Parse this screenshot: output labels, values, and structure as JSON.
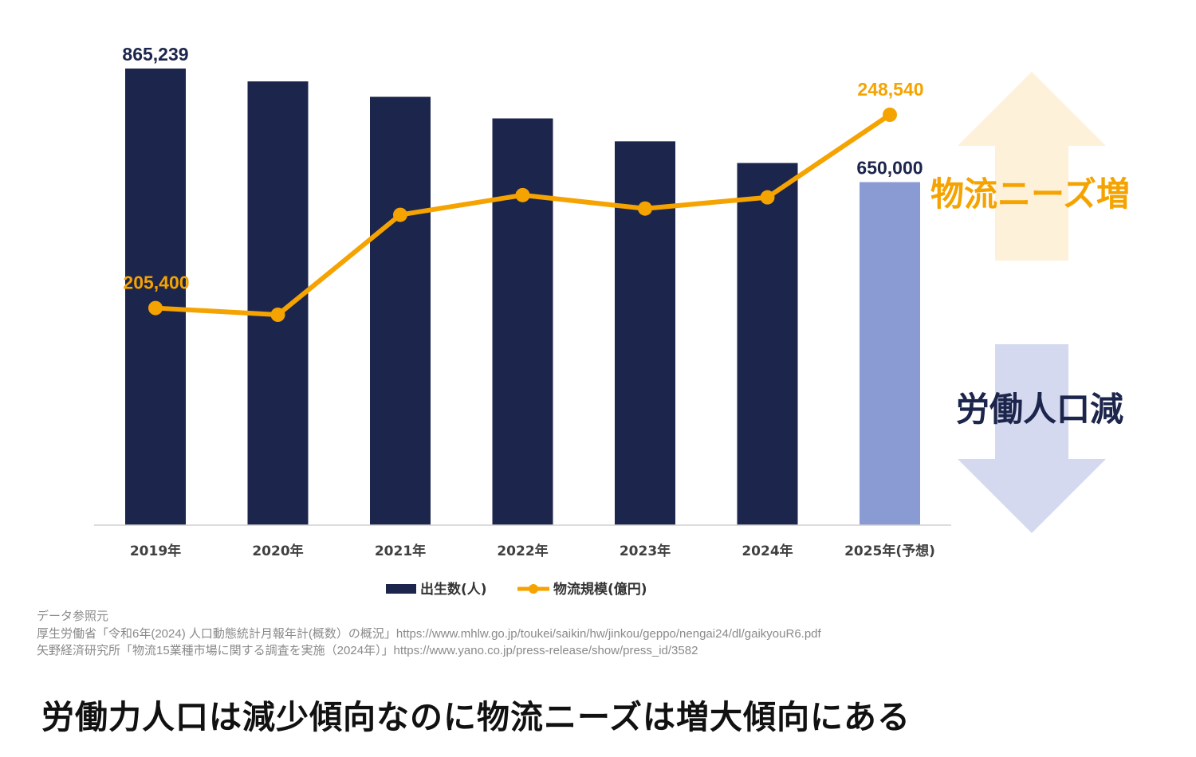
{
  "chart_data": {
    "type": "bar+line",
    "categories": [
      "2019年",
      "2020年",
      "2021年",
      "2022年",
      "2023年",
      "2024年",
      "2025年(予想)"
    ],
    "series": [
      {
        "name": "出生数(人)",
        "type": "bar",
        "values": [
          865239,
          840835,
          811622,
          770759,
          727288,
          686173,
          650000
        ],
        "color": "#1c254b",
        "forecast_color": "#8a9bd4",
        "labels": [
          "865,239",
          "",
          "",
          "",
          "",
          "",
          "650,000"
        ]
      },
      {
        "name": "物流規模(億円)",
        "type": "line",
        "values": [
          205400,
          203900,
          226200,
          230600,
          227600,
          230100,
          248540
        ],
        "color": "#f5a300",
        "labels": [
          "205,400",
          "",
          "",
          "",
          "",
          "",
          "248,540"
        ]
      }
    ],
    "bar_axis_range": [
      0,
      900000
    ],
    "line_axis_range": [
      184800,
      251000
    ],
    "grid": false,
    "legend_position": "bottom"
  },
  "side_labels": {
    "up": {
      "text": "物流ニーズ増",
      "color": "#f5a300",
      "arrow_color": "#fdf1d9"
    },
    "down": {
      "text": "労働人口減",
      "color": "#1c254b",
      "arrow_color": "#d4d9ef"
    }
  },
  "sources": {
    "heading": "データ参照元",
    "line1": "厚生労働省「令和6年(2024) 人口動態統計月報年計(概数）の概況」https://www.mhlw.go.jp/toukei/saikin/hw/jinkou/geppo/nengai24/dl/gaikyouR6.pdf",
    "line2": "矢野経済研究所「物流15業種市場に関する調査を実施（2024年）」https://www.yano.co.jp/press-release/show/press_id/3582"
  },
  "caption": "労働力人口は減少傾向なのに物流ニーズは増大傾向にある"
}
